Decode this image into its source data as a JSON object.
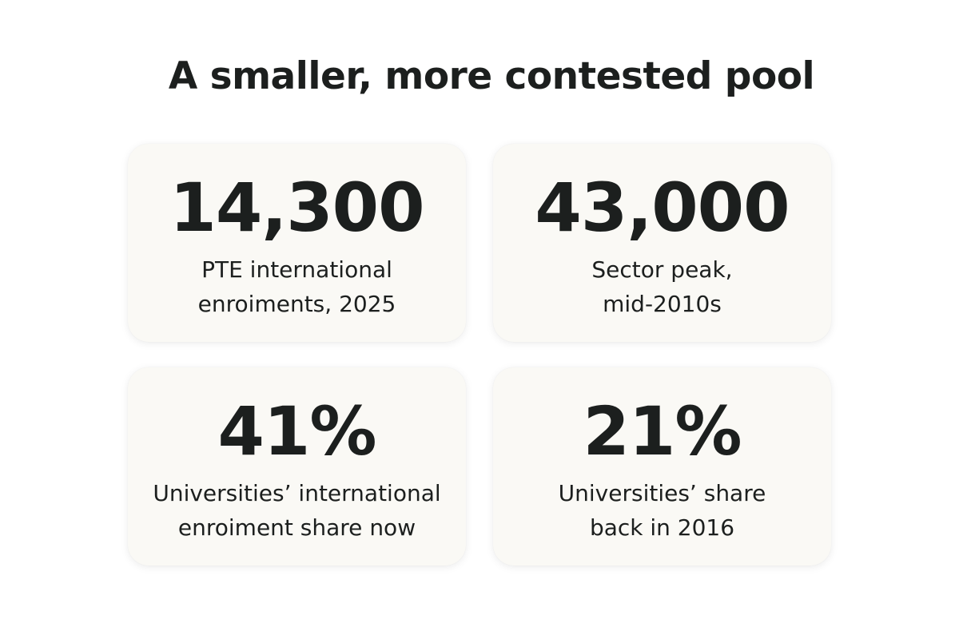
{
  "title": "A smaller, more contested pool",
  "cards": [
    {
      "value": "14,300",
      "label_lines": [
        "PTE international",
        "enroiments, 2025"
      ]
    },
    {
      "value": "43,000",
      "label_lines": [
        "Sector peak,",
        "mid-2010s"
      ]
    },
    {
      "value": "41%",
      "label_lines": [
        "Universities’ international",
        "enroiment share now"
      ]
    },
    {
      "value": "21%",
      "label_lines": [
        "Universities’ share",
        "back in 2016"
      ]
    }
  ]
}
